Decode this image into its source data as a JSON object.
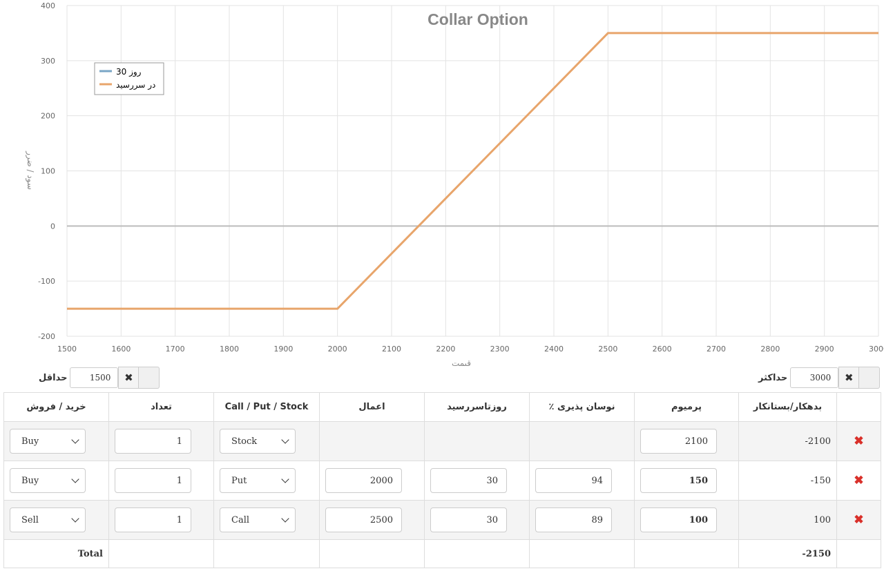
{
  "chart_data": {
    "type": "line",
    "title": "Collar Option",
    "xlabel": "قیمت",
    "ylabel": "سود / ضرر",
    "xlim": [
      1500,
      3000
    ],
    "ylim": [
      -200,
      400
    ],
    "x_ticks": [
      1500,
      1600,
      1700,
      1800,
      1900,
      2000,
      2100,
      2200,
      2300,
      2400,
      2500,
      2600,
      2700,
      2800,
      2900,
      3000
    ],
    "y_ticks": [
      -200,
      -100,
      0,
      100,
      200,
      300,
      400
    ],
    "grid": true,
    "legend_position": "top-left",
    "series": [
      {
        "name": "30 روز",
        "color": "#7aa6c6",
        "points": []
      },
      {
        "name": "در سررسید",
        "color": "#e8a56b",
        "points": [
          [
            1500,
            -150
          ],
          [
            2000,
            -150
          ],
          [
            2500,
            350
          ],
          [
            3000,
            350
          ]
        ]
      }
    ]
  },
  "controls": {
    "min_label": "حداقل",
    "min_value": "1500",
    "max_label": "حداکثر",
    "max_value": "3000"
  },
  "table": {
    "headers": {
      "side": "خرید / فروش",
      "qty": "تعداد",
      "type": "Call / Put / Stock",
      "strike": "اعمال",
      "days": "روزتاسررسید",
      "vol": "٪ نوسان پذیری",
      "premium": "پرمیوم",
      "debit_credit": "بدهکار/بستانکار"
    },
    "rows": [
      {
        "side": "Buy",
        "qty": "1",
        "type": "Stock",
        "strike": "",
        "days": "",
        "vol": "",
        "premium": "2100",
        "debit_credit": "-2100",
        "delete_icon": "✖"
      },
      {
        "side": "Buy",
        "qty": "1",
        "type": "Put",
        "strike": "2000",
        "days": "30",
        "vol": "94",
        "premium": "150",
        "debit_credit": "-150",
        "delete_icon": "✖"
      },
      {
        "side": "Sell",
        "qty": "1",
        "type": "Call",
        "strike": "2500",
        "days": "30",
        "vol": "89",
        "premium": "100",
        "debit_credit": "100",
        "delete_icon": "✖"
      }
    ],
    "total_label": "Total",
    "total_value": "-2150"
  }
}
